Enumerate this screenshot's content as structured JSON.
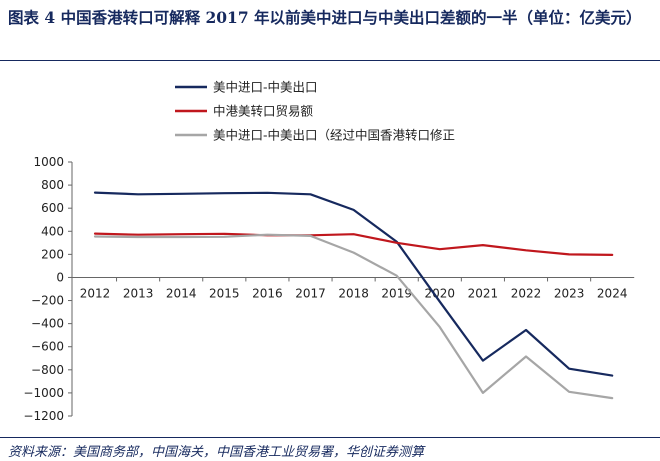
{
  "header": {
    "title": "图表 4 中国香港转口可解释 2017 年以前美中进口与中美出口差额的一半（单位：亿美元）"
  },
  "footer": {
    "source": "资料来源：美国商务部，中国海关，中国香港工业贸易署，华创证券测算"
  },
  "chart_data": {
    "type": "line",
    "x": [
      "2012",
      "2013",
      "2014",
      "2015",
      "2016",
      "2017",
      "2018",
      "2019",
      "2020",
      "2021",
      "2022",
      "2023",
      "2024"
    ],
    "ylim": [
      -1200,
      1000
    ],
    "yticks": [
      1000,
      800,
      600,
      400,
      200,
      0,
      -200,
      -400,
      -600,
      -800,
      -1000,
      -1200
    ],
    "ytick_labels": [
      "1000",
      "800",
      "600",
      "400",
      "200",
      "0",
      "−200",
      "−400",
      "−600",
      "−800",
      "−1000",
      "−1200"
    ],
    "grid": false,
    "legend": "top-left",
    "series": [
      {
        "name": "美中进口-中美出口",
        "color": "#16295e",
        "values": [
          735,
          720,
          725,
          730,
          733,
          720,
          585,
          310,
          -210,
          -720,
          -455,
          -790,
          -850
        ]
      },
      {
        "name": "中港美转口贸易额",
        "color": "#c0171d",
        "values": [
          380,
          370,
          375,
          378,
          365,
          365,
          375,
          300,
          245,
          280,
          235,
          200,
          195
        ]
      },
      {
        "name": "美中进口-中美出口（经过中国香港转口修正",
        "color": "#a6a6a6",
        "values": [
          355,
          350,
          350,
          352,
          370,
          360,
          215,
          15,
          -430,
          -1000,
          -685,
          -990,
          -1045
        ]
      }
    ]
  }
}
